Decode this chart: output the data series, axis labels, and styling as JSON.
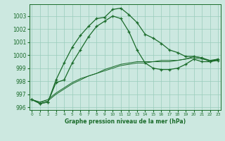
{
  "xlabel": "Graphe pression niveau de la mer (hPa)",
  "background_color": "#cce8e0",
  "grid_color": "#99ccbb",
  "line_color": "#1a6b2a",
  "ylim": [
    995.8,
    1003.9
  ],
  "xlim": [
    -0.3,
    23.3
  ],
  "yticks": [
    996,
    997,
    998,
    999,
    1000,
    1001,
    1002,
    1003
  ],
  "xticks": [
    0,
    1,
    2,
    3,
    4,
    5,
    6,
    7,
    8,
    9,
    10,
    11,
    12,
    13,
    14,
    15,
    16,
    17,
    18,
    19,
    20,
    21,
    22,
    23
  ],
  "line1_y": [
    996.6,
    996.3,
    996.4,
    998.1,
    999.4,
    1000.6,
    1001.5,
    1002.2,
    1002.8,
    1002.9,
    1003.5,
    1003.6,
    1003.1,
    1002.5,
    1001.6,
    1001.3,
    1000.9,
    1000.4,
    1000.2,
    999.9,
    999.9,
    999.8,
    999.5,
    999.7
  ],
  "line2_y": [
    996.6,
    996.3,
    996.4,
    997.9,
    998.1,
    999.4,
    1000.4,
    1001.4,
    1002.2,
    1002.6,
    1003.0,
    1002.8,
    1001.8,
    1000.4,
    999.4,
    999.0,
    998.9,
    998.9,
    999.0,
    999.3,
    999.7,
    999.5,
    999.5,
    999.6
  ],
  "line3_y": [
    996.6,
    996.4,
    996.5,
    997.0,
    997.4,
    997.8,
    998.1,
    998.4,
    998.6,
    998.9,
    999.1,
    999.3,
    999.4,
    999.5,
    999.5,
    999.5,
    999.6,
    999.6,
    999.6,
    999.7,
    999.9,
    999.8,
    999.6,
    999.7
  ],
  "line4_y": [
    996.6,
    996.4,
    996.6,
    997.1,
    997.5,
    997.9,
    998.2,
    998.4,
    998.6,
    998.8,
    999.0,
    999.2,
    999.3,
    999.4,
    999.4,
    999.5,
    999.5,
    999.5,
    999.6,
    999.7,
    999.8,
    999.7,
    999.6,
    999.6
  ]
}
